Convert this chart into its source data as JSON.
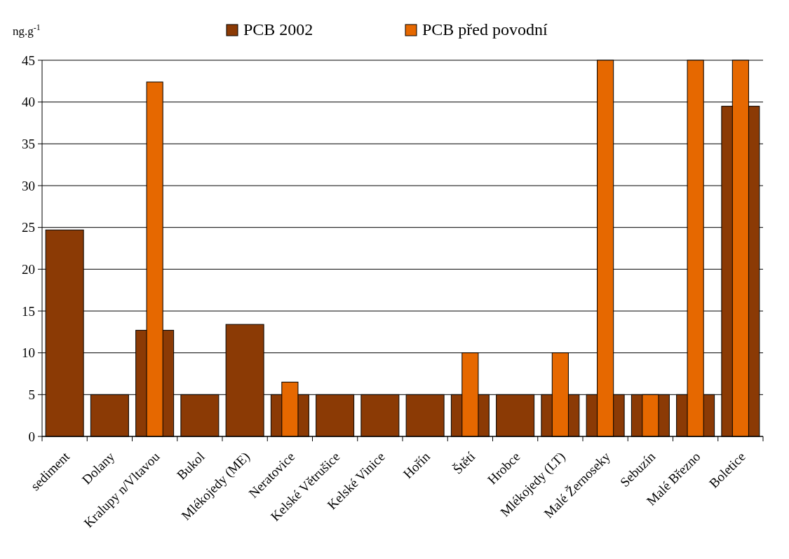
{
  "chart_data": {
    "type": "bar",
    "ylabel": "ng.g$^{-1}$",
    "categories": [
      "sediment",
      "Dolany",
      "Kralupy n/Vltavou",
      "Bukol",
      "Mlékojedy (ME)",
      "Neratovice",
      "Kelské Větrušice",
      "Kelské Vinice",
      "Hořín",
      "Štětí",
      "Hrobce",
      "Mlékojedy (LT)",
      "Malé Žernoseky",
      "Sebuzín",
      "Malé Březno",
      "Boletice"
    ],
    "series": [
      {
        "name": "PCB 2002",
        "color": "#8b3a05",
        "values": [
          24.7,
          5,
          12.7,
          5,
          13.4,
          5,
          5,
          5,
          5,
          5,
          5,
          5,
          5,
          5,
          5,
          39.5
        ]
      },
      {
        "name": "PCB před povodní",
        "color": "#e66800",
        "values": [
          null,
          null,
          42.4,
          null,
          null,
          6.5,
          null,
          null,
          null,
          10,
          null,
          10,
          45,
          5,
          45,
          45
        ]
      }
    ],
    "ylim": [
      0,
      45
    ],
    "yticks": [
      0,
      5,
      10,
      15,
      20,
      25,
      30,
      35,
      40,
      45
    ],
    "grid": "y",
    "legend": "top"
  }
}
